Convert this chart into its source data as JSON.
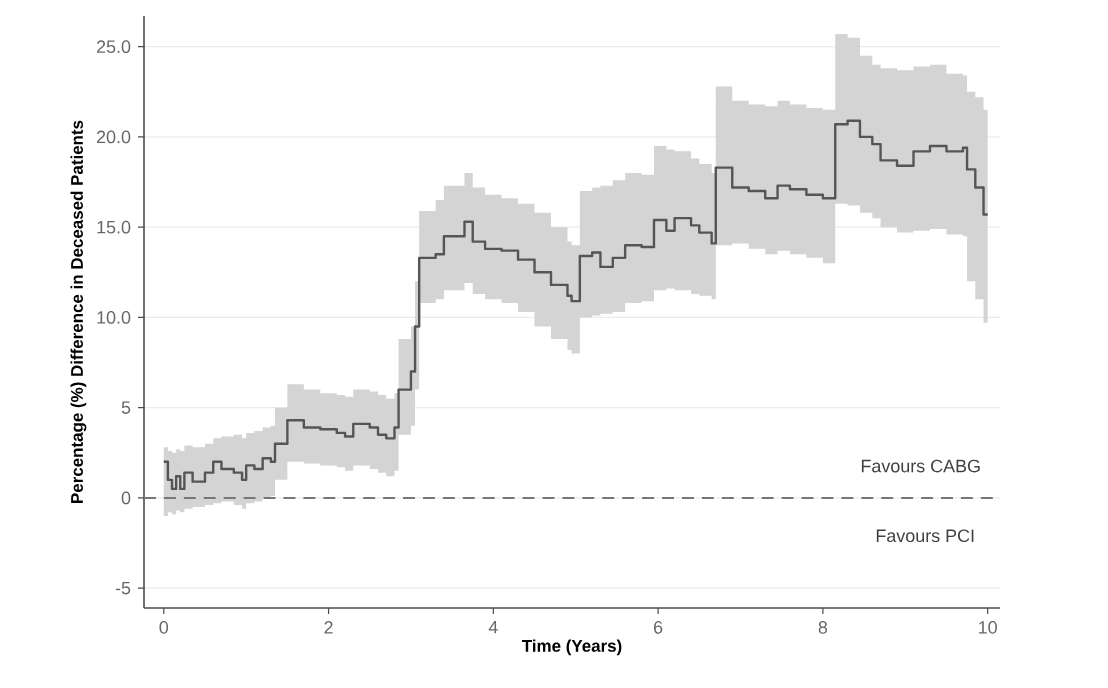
{
  "chart_data": {
    "type": "step",
    "xlabel": "Time (Years)",
    "ylabel": "Percentage (%) Difference in Deceased Patients",
    "x": [
      0,
      0.05,
      0.1,
      0.15,
      0.2,
      0.25,
      0.35,
      0.5,
      0.6,
      0.7,
      0.85,
      0.95,
      1.0,
      1.1,
      1.2,
      1.3,
      1.35,
      1.5,
      1.7,
      1.9,
      2.1,
      2.2,
      2.3,
      2.5,
      2.6,
      2.7,
      2.8,
      2.85,
      3.0,
      3.05,
      3.1,
      3.3,
      3.4,
      3.65,
      3.75,
      3.9,
      4.1,
      4.3,
      4.5,
      4.7,
      4.9,
      4.95,
      5.05,
      5.2,
      5.3,
      5.45,
      5.6,
      5.8,
      5.95,
      6.1,
      6.2,
      6.4,
      6.5,
      6.65,
      6.7,
      6.9,
      7.1,
      7.3,
      7.45,
      7.6,
      7.8,
      8.0,
      8.15,
      8.3,
      8.45,
      8.6,
      8.7,
      8.9,
      9.1,
      9.3,
      9.5,
      9.7,
      9.75,
      9.85,
      9.95,
      10.0
    ],
    "series": [
      {
        "color": "#555555",
        "values": [
          2.0,
          1.0,
          0.5,
          1.2,
          0.5,
          1.4,
          0.9,
          1.4,
          2.0,
          1.6,
          1.4,
          1.0,
          1.8,
          1.6,
          2.2,
          2.0,
          3.0,
          4.3,
          3.9,
          3.8,
          3.6,
          3.4,
          4.1,
          3.9,
          3.5,
          3.3,
          3.9,
          6.0,
          7.0,
          9.5,
          13.3,
          13.5,
          14.5,
          15.3,
          14.2,
          13.8,
          13.7,
          13.2,
          12.5,
          11.8,
          11.2,
          10.9,
          13.4,
          13.6,
          12.8,
          13.3,
          14.0,
          13.9,
          15.4,
          14.8,
          15.5,
          15.1,
          14.7,
          14.1,
          18.3,
          17.2,
          17.0,
          16.6,
          17.3,
          17.1,
          16.8,
          16.6,
          20.7,
          20.9,
          20.0,
          19.6,
          18.7,
          18.4,
          19.2,
          19.5,
          19.2,
          19.4,
          18.2,
          17.2,
          15.7,
          15.7
        ],
        "lower": [
          -1.0,
          -0.8,
          -0.9,
          -0.7,
          -0.8,
          -0.6,
          -0.5,
          -0.4,
          -0.3,
          -0.2,
          -0.4,
          -0.6,
          -0.3,
          -0.2,
          0.0,
          0.1,
          1.0,
          2.0,
          1.9,
          1.8,
          1.7,
          1.5,
          1.8,
          1.6,
          1.4,
          1.2,
          1.5,
          3.5,
          4.0,
          6.0,
          10.8,
          11.0,
          11.5,
          11.9,
          11.3,
          11.0,
          10.8,
          10.3,
          9.5,
          8.8,
          8.2,
          8.0,
          10.0,
          10.1,
          10.2,
          10.3,
          10.8,
          10.9,
          11.5,
          11.6,
          11.5,
          11.3,
          11.2,
          11.0,
          14.0,
          14.1,
          13.8,
          13.5,
          13.7,
          13.5,
          13.3,
          13.0,
          16.3,
          16.2,
          15.8,
          15.5,
          15.0,
          14.7,
          14.8,
          14.9,
          14.6,
          14.5,
          12.0,
          11.0,
          9.7,
          9.7
        ],
        "upper": [
          2.8,
          2.6,
          2.5,
          2.7,
          2.6,
          2.9,
          2.8,
          3.0,
          3.3,
          3.4,
          3.5,
          3.3,
          3.6,
          3.7,
          3.9,
          4.0,
          5.0,
          6.3,
          6.0,
          5.8,
          5.7,
          5.6,
          6.0,
          5.9,
          5.7,
          5.5,
          5.8,
          8.8,
          9.5,
          12.0,
          15.9,
          16.5,
          17.3,
          18.0,
          17.2,
          16.8,
          16.6,
          16.3,
          15.8,
          15.0,
          14.2,
          14.0,
          17.0,
          17.2,
          17.3,
          17.6,
          18.0,
          17.9,
          19.5,
          19.3,
          19.2,
          18.8,
          18.5,
          18.0,
          22.8,
          22.0,
          21.8,
          21.7,
          22.0,
          21.8,
          21.6,
          21.5,
          25.7,
          25.5,
          24.5,
          24.0,
          23.8,
          23.7,
          23.9,
          24.0,
          23.5,
          23.4,
          22.5,
          22.2,
          21.5,
          21.5
        ]
      }
    ],
    "xlim": [
      -0.24,
      10.15
    ],
    "ylim": [
      -6.1,
      26.7
    ],
    "xticks": [
      0,
      2,
      4,
      6,
      8,
      10
    ],
    "yticks": [
      {
        "value": -5,
        "label": "-5"
      },
      {
        "value": 0,
        "label": "0"
      },
      {
        "value": 5,
        "label": "5"
      },
      {
        "value": 10,
        "label": "10.0"
      },
      {
        "value": 15,
        "label": "15.0"
      },
      {
        "value": 20,
        "label": "20.0"
      },
      {
        "value": 25,
        "label": "25.0"
      }
    ],
    "grid": "y",
    "marker": "none",
    "ref_lines": [
      {
        "axis": "y",
        "value": 0,
        "color": "#777777",
        "line_style": "dashed"
      }
    ],
    "annotations": [
      "Favours CABG",
      "Favours PCI"
    ]
  }
}
